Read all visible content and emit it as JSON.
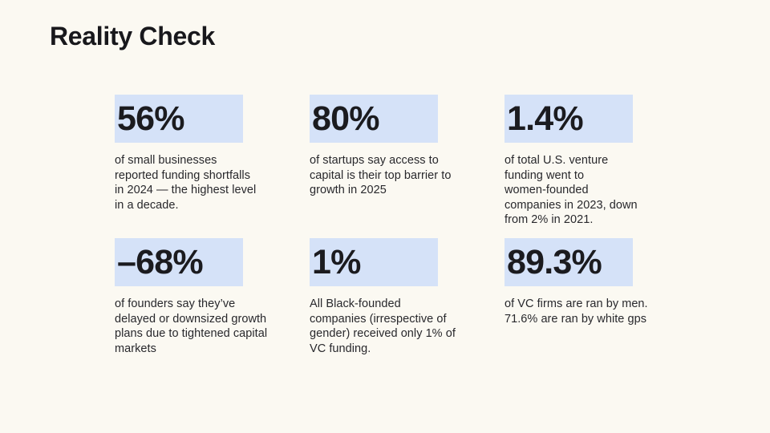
{
  "slide": {
    "title": "Reality Check",
    "colors": {
      "background": "#fbf9f2",
      "highlight": "#d5e2f8",
      "heading_text": "#18181c",
      "body_text": "#28282c"
    },
    "stats": [
      {
        "value": "56%",
        "description": "of small businesses\nreported funding shortfalls\nin 2024 — the highest level\nin a decade."
      },
      {
        "value": "80%",
        "description": "of startups say access to\ncapital is their top barrier to\ngrowth in 2025"
      },
      {
        "value": "1.4%",
        "description": "of total U.S. venture\nfunding went to\nwomen-founded\ncompanies in 2023, down\nfrom 2% in 2021."
      },
      {
        "value": "–68%",
        "description": "of founders say they’ve\ndelayed or downsized growth\nplans due to tightened capital\nmarkets"
      },
      {
        "value": "1%",
        "description": "All Black-founded\ncompanies (irrespective of\ngender) received only 1% of\nVC funding."
      },
      {
        "value": "89.3%",
        "description": "of VC firms are ran by men.\n71.6% are ran by white gps"
      }
    ]
  }
}
